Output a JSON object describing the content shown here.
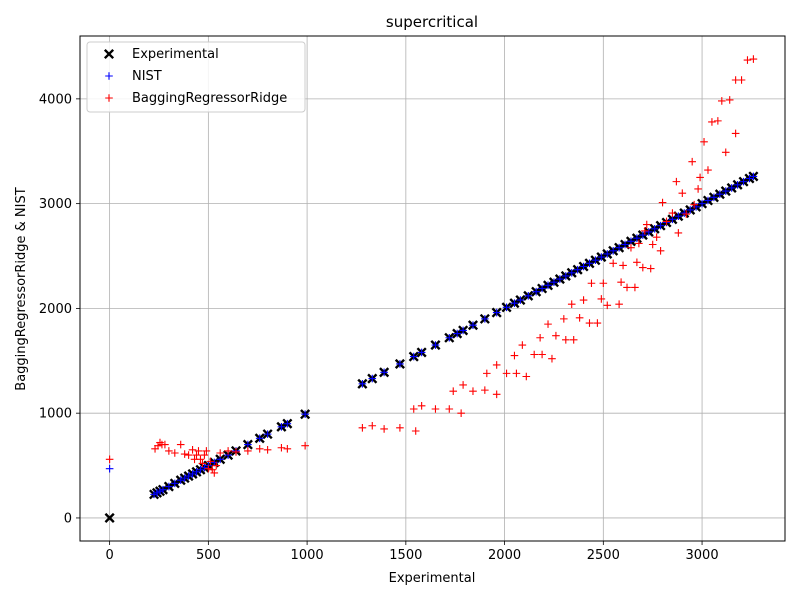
{
  "chart_data": {
    "type": "scatter",
    "title": "supercritical",
    "xlabel": "Experimental",
    "ylabel": "BaggingRegressorRidge & NIST",
    "xlim": [
      -150,
      3420
    ],
    "ylim": [
      -220,
      4600
    ],
    "xticks": [
      0,
      500,
      1000,
      1500,
      2000,
      2500,
      3000
    ],
    "yticks": [
      0,
      1000,
      2000,
      3000,
      4000
    ],
    "grid": true,
    "legend_position": "top-left",
    "series": [
      {
        "name": "Experimental",
        "marker": "x",
        "color": "#000000",
        "points": [
          [
            0,
            0
          ],
          [
            225,
            225
          ],
          [
            240,
            240
          ],
          [
            255,
            255
          ],
          [
            270,
            270
          ],
          [
            300,
            300
          ],
          [
            330,
            330
          ],
          [
            360,
            360
          ],
          [
            380,
            380
          ],
          [
            400,
            400
          ],
          [
            420,
            420
          ],
          [
            440,
            440
          ],
          [
            460,
            460
          ],
          [
            480,
            480
          ],
          [
            500,
            500
          ],
          [
            530,
            530
          ],
          [
            560,
            560
          ],
          [
            600,
            600
          ],
          [
            640,
            640
          ],
          [
            700,
            700
          ],
          [
            760,
            760
          ],
          [
            800,
            800
          ],
          [
            870,
            870
          ],
          [
            900,
            900
          ],
          [
            990,
            990
          ],
          [
            1280,
            1280
          ],
          [
            1330,
            1330
          ],
          [
            1390,
            1390
          ],
          [
            1470,
            1470
          ],
          [
            1540,
            1540
          ],
          [
            1580,
            1580
          ],
          [
            1650,
            1650
          ],
          [
            1720,
            1720
          ],
          [
            1760,
            1760
          ],
          [
            1790,
            1790
          ],
          [
            1840,
            1840
          ],
          [
            1900,
            1900
          ],
          [
            1960,
            1960
          ],
          [
            2010,
            2010
          ],
          [
            2050,
            2050
          ],
          [
            2080,
            2080
          ],
          [
            2120,
            2120
          ],
          [
            2160,
            2160
          ],
          [
            2190,
            2190
          ],
          [
            2220,
            2220
          ],
          [
            2250,
            2250
          ],
          [
            2280,
            2280
          ],
          [
            2310,
            2310
          ],
          [
            2340,
            2340
          ],
          [
            2370,
            2370
          ],
          [
            2400,
            2400
          ],
          [
            2430,
            2430
          ],
          [
            2460,
            2460
          ],
          [
            2490,
            2490
          ],
          [
            2520,
            2520
          ],
          [
            2550,
            2550
          ],
          [
            2580,
            2580
          ],
          [
            2610,
            2610
          ],
          [
            2640,
            2640
          ],
          [
            2670,
            2670
          ],
          [
            2700,
            2700
          ],
          [
            2730,
            2730
          ],
          [
            2760,
            2760
          ],
          [
            2790,
            2790
          ],
          [
            2820,
            2820
          ],
          [
            2850,
            2850
          ],
          [
            2880,
            2880
          ],
          [
            2910,
            2910
          ],
          [
            2940,
            2940
          ],
          [
            2970,
            2970
          ],
          [
            3000,
            3000
          ],
          [
            3030,
            3030
          ],
          [
            3060,
            3060
          ],
          [
            3090,
            3090
          ],
          [
            3120,
            3120
          ],
          [
            3150,
            3150
          ],
          [
            3180,
            3180
          ],
          [
            3210,
            3210
          ],
          [
            3240,
            3240
          ],
          [
            3260,
            3260
          ]
        ]
      },
      {
        "name": "NIST",
        "marker": "+",
        "color": "#0000ff",
        "points": [
          [
            0,
            470
          ],
          [
            225,
            225
          ],
          [
            240,
            240
          ],
          [
            255,
            255
          ],
          [
            270,
            270
          ],
          [
            300,
            300
          ],
          [
            330,
            330
          ],
          [
            360,
            360
          ],
          [
            380,
            380
          ],
          [
            400,
            400
          ],
          [
            420,
            420
          ],
          [
            440,
            440
          ],
          [
            460,
            460
          ],
          [
            480,
            480
          ],
          [
            500,
            500
          ],
          [
            530,
            530
          ],
          [
            560,
            560
          ],
          [
            600,
            600
          ],
          [
            640,
            640
          ],
          [
            700,
            700
          ],
          [
            760,
            760
          ],
          [
            800,
            800
          ],
          [
            870,
            870
          ],
          [
            900,
            900
          ],
          [
            990,
            990
          ],
          [
            1280,
            1280
          ],
          [
            1330,
            1330
          ],
          [
            1390,
            1390
          ],
          [
            1470,
            1470
          ],
          [
            1540,
            1540
          ],
          [
            1580,
            1580
          ],
          [
            1650,
            1650
          ],
          [
            1720,
            1720
          ],
          [
            1760,
            1760
          ],
          [
            1790,
            1790
          ],
          [
            1840,
            1840
          ],
          [
            1900,
            1900
          ],
          [
            1960,
            1960
          ],
          [
            2010,
            2010
          ],
          [
            2050,
            2050
          ],
          [
            2080,
            2080
          ],
          [
            2120,
            2120
          ],
          [
            2160,
            2160
          ],
          [
            2190,
            2190
          ],
          [
            2220,
            2220
          ],
          [
            2250,
            2250
          ],
          [
            2280,
            2280
          ],
          [
            2310,
            2310
          ],
          [
            2340,
            2340
          ],
          [
            2370,
            2370
          ],
          [
            2400,
            2400
          ],
          [
            2430,
            2430
          ],
          [
            2460,
            2460
          ],
          [
            2490,
            2490
          ],
          [
            2520,
            2520
          ],
          [
            2550,
            2550
          ],
          [
            2580,
            2580
          ],
          [
            2610,
            2610
          ],
          [
            2640,
            2640
          ],
          [
            2670,
            2670
          ],
          [
            2700,
            2700
          ],
          [
            2730,
            2730
          ],
          [
            2760,
            2760
          ],
          [
            2790,
            2790
          ],
          [
            2820,
            2820
          ],
          [
            2850,
            2850
          ],
          [
            2880,
            2880
          ],
          [
            2910,
            2910
          ],
          [
            2940,
            2940
          ],
          [
            2970,
            2970
          ],
          [
            3000,
            3000
          ],
          [
            3030,
            3030
          ],
          [
            3060,
            3060
          ],
          [
            3090,
            3090
          ],
          [
            3120,
            3120
          ],
          [
            3150,
            3150
          ],
          [
            3180,
            3180
          ],
          [
            3210,
            3210
          ],
          [
            3240,
            3240
          ],
          [
            3260,
            3260
          ]
        ]
      },
      {
        "name": "BaggingRegressorRidge",
        "marker": "+",
        "color": "#ff0000",
        "points": [
          [
            0,
            560
          ],
          [
            230,
            660
          ],
          [
            245,
            690
          ],
          [
            255,
            720
          ],
          [
            265,
            700
          ],
          [
            280,
            700
          ],
          [
            300,
            640
          ],
          [
            330,
            620
          ],
          [
            360,
            700
          ],
          [
            380,
            610
          ],
          [
            400,
            600
          ],
          [
            420,
            650
          ],
          [
            430,
            560
          ],
          [
            440,
            600
          ],
          [
            450,
            640
          ],
          [
            460,
            560
          ],
          [
            470,
            520
          ],
          [
            480,
            600
          ],
          [
            490,
            640
          ],
          [
            500,
            470
          ],
          [
            510,
            540
          ],
          [
            520,
            460
          ],
          [
            530,
            430
          ],
          [
            540,
            500
          ],
          [
            560,
            620
          ],
          [
            600,
            640
          ],
          [
            640,
            630
          ],
          [
            700,
            640
          ],
          [
            760,
            660
          ],
          [
            800,
            650
          ],
          [
            870,
            670
          ],
          [
            900,
            660
          ],
          [
            990,
            690
          ],
          [
            1280,
            860
          ],
          [
            1330,
            880
          ],
          [
            1390,
            850
          ],
          [
            1470,
            860
          ],
          [
            1540,
            1040
          ],
          [
            1550,
            830
          ],
          [
            1580,
            1070
          ],
          [
            1650,
            1040
          ],
          [
            1720,
            1040
          ],
          [
            1740,
            1210
          ],
          [
            1780,
            1000
          ],
          [
            1790,
            1270
          ],
          [
            1840,
            1210
          ],
          [
            1900,
            1220
          ],
          [
            1910,
            1380
          ],
          [
            1960,
            1460
          ],
          [
            1960,
            1180
          ],
          [
            2010,
            1380
          ],
          [
            2050,
            1550
          ],
          [
            2060,
            1380
          ],
          [
            2090,
            1650
          ],
          [
            2110,
            1350
          ],
          [
            2150,
            1560
          ],
          [
            2180,
            1720
          ],
          [
            2190,
            1560
          ],
          [
            2220,
            1850
          ],
          [
            2240,
            1520
          ],
          [
            2260,
            1740
          ],
          [
            2300,
            1900
          ],
          [
            2310,
            1700
          ],
          [
            2340,
            2040
          ],
          [
            2350,
            1700
          ],
          [
            2380,
            1910
          ],
          [
            2400,
            2080
          ],
          [
            2430,
            1860
          ],
          [
            2440,
            2240
          ],
          [
            2470,
            1860
          ],
          [
            2490,
            2090
          ],
          [
            2500,
            2240
          ],
          [
            2520,
            2030
          ],
          [
            2550,
            2430
          ],
          [
            2580,
            2040
          ],
          [
            2590,
            2250
          ],
          [
            2600,
            2410
          ],
          [
            2620,
            2200
          ],
          [
            2640,
            2580
          ],
          [
            2660,
            2200
          ],
          [
            2670,
            2440
          ],
          [
            2680,
            2620
          ],
          [
            2700,
            2390
          ],
          [
            2710,
            2740
          ],
          [
            2720,
            2800
          ],
          [
            2740,
            2380
          ],
          [
            2750,
            2610
          ],
          [
            2770,
            2680
          ],
          [
            2790,
            2550
          ],
          [
            2800,
            3010
          ],
          [
            2820,
            2830
          ],
          [
            2850,
            2910
          ],
          [
            2870,
            3210
          ],
          [
            2880,
            2720
          ],
          [
            2900,
            3100
          ],
          [
            2920,
            2900
          ],
          [
            2950,
            3400
          ],
          [
            2960,
            2990
          ],
          [
            2980,
            3140
          ],
          [
            2990,
            3250
          ],
          [
            3010,
            3590
          ],
          [
            3030,
            3320
          ],
          [
            3050,
            3780
          ],
          [
            3080,
            3790
          ],
          [
            3100,
            3980
          ],
          [
            3120,
            3490
          ],
          [
            3140,
            3990
          ],
          [
            3170,
            3670
          ],
          [
            3170,
            4180
          ],
          [
            3200,
            4180
          ],
          [
            3230,
            4370
          ],
          [
            3260,
            4380
          ]
        ]
      }
    ]
  }
}
